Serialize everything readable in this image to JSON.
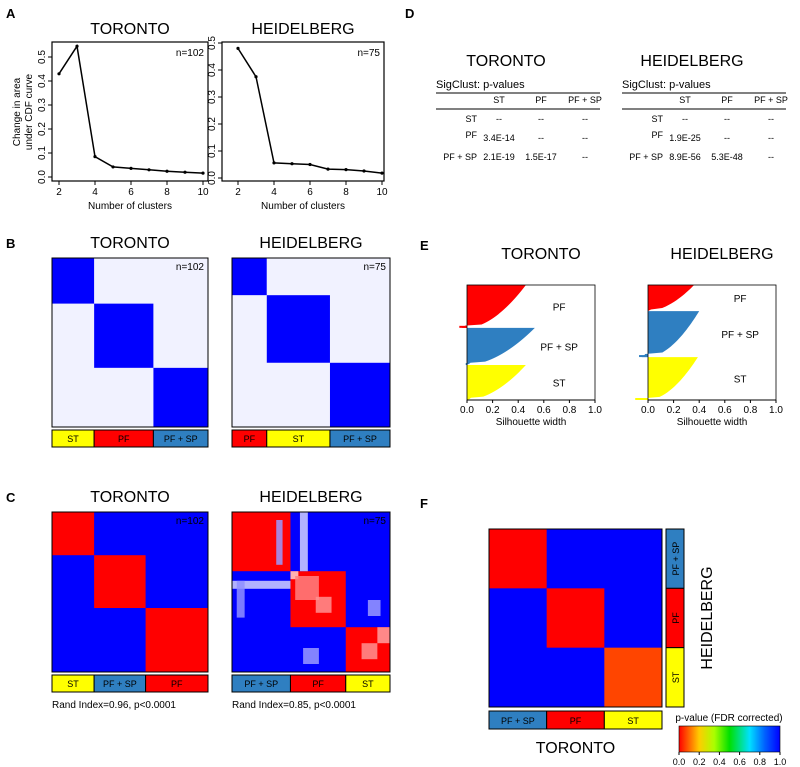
{
  "panel_labels": {
    "a": "A",
    "b": "B",
    "c": "C",
    "d": "D",
    "e": "E",
    "f": "F"
  },
  "colors": {
    "red": "#ff0000",
    "blue": "#0000ff",
    "steel": "#2f7fc1",
    "yellow": "#ffff00",
    "white": "#ffffff",
    "orange": "#ff4500"
  },
  "chart_data": [
    {
      "id": "A-toronto",
      "type": "line",
      "title": "TORONTO",
      "annotation": "n=102",
      "xlabel": "Number of clusters",
      "ylabel": [
        "Change in area",
        "under CDF curve"
      ],
      "x": [
        2,
        3,
        4,
        5,
        6,
        7,
        8,
        9,
        10
      ],
      "values": [
        0.43,
        0.545,
        0.085,
        0.042,
        0.036,
        0.03,
        0.024,
        0.02,
        0.016
      ],
      "xlim": [
        2,
        10
      ],
      "ylim": [
        0,
        0.55
      ],
      "xticks": [
        "2",
        "4",
        "6",
        "8",
        "10"
      ],
      "yticks": [
        "0.0",
        "0.1",
        "0.2",
        "0.3",
        "0.4",
        "0.5"
      ]
    },
    {
      "id": "A-heidelberg",
      "type": "line",
      "title": "HEIDELBERG",
      "annotation": "n=75",
      "xlabel": "Number of clusters",
      "x": [
        2,
        3,
        4,
        5,
        6,
        7,
        8,
        9,
        10
      ],
      "values": [
        0.48,
        0.375,
        0.056,
        0.053,
        0.05,
        0.033,
        0.031,
        0.026,
        0.018
      ],
      "xlim": [
        2,
        10
      ],
      "ylim": [
        0,
        0.5
      ],
      "xticks": [
        "2",
        "4",
        "6",
        "8",
        "10"
      ],
      "yticks": [
        "0.0",
        "0.1",
        "0.2",
        "0.3",
        "0.4",
        "0.5"
      ]
    },
    {
      "id": "D",
      "type": "table",
      "caption": "SigClust: p-values",
      "tables": [
        {
          "title": "TORONTO",
          "columns": [
            "ST",
            "PF",
            "PF + SP"
          ],
          "rows": [
            {
              "label": "ST",
              "cells": [
                "--",
                "--",
                "--"
              ]
            },
            {
              "label": "PF",
              "cells": [
                "3.4E-14",
                "--",
                "--"
              ]
            },
            {
              "label": "PF + SP",
              "cells": [
                "2.1E-19",
                "1.5E-17",
                "--"
              ]
            }
          ]
        },
        {
          "title": "HEIDELBERG",
          "columns": [
            "ST",
            "PF",
            "PF + SP"
          ],
          "rows": [
            {
              "label": "ST",
              "cells": [
                "--",
                "--",
                "--"
              ]
            },
            {
              "label": "PF",
              "cells": [
                "1.9E-25",
                "--",
                "--"
              ]
            },
            {
              "label": "PF + SP",
              "cells": [
                "8.9E-56",
                "5.3E-48",
                "--"
              ]
            }
          ]
        }
      ]
    },
    {
      "id": "B-toronto",
      "type": "heatmap",
      "title": "TORONTO",
      "annotation": "n=102",
      "clusters": [
        "ST",
        "PF",
        "PF + SP"
      ],
      "fractions": [
        0.27,
        0.38,
        0.35
      ]
    },
    {
      "id": "B-heidelberg",
      "type": "heatmap",
      "title": "HEIDELBERG",
      "annotation": "n=75",
      "clusters": [
        "PF",
        "ST",
        "PF + SP"
      ],
      "fractions": [
        0.22,
        0.4,
        0.38
      ]
    },
    {
      "id": "E-toronto",
      "type": "bar",
      "title": "TORONTO",
      "xlabel": "Silhouette width",
      "xticks": [
        "0.0",
        "0.2",
        "0.4",
        "0.6",
        "0.8",
        "1.0"
      ],
      "xlim": [
        0,
        1
      ],
      "clusters": [
        {
          "name": "PF",
          "max": 0.46,
          "min": -0.06,
          "n": 38
        },
        {
          "name": "PF + SP",
          "max": 0.53,
          "min": -0.01,
          "n": 33
        },
        {
          "name": "ST",
          "max": 0.46,
          "min": 0.0,
          "n": 31
        }
      ]
    },
    {
      "id": "E-heidelberg",
      "type": "bar",
      "title": "HEIDELBERG",
      "xlabel": "Silhouette width",
      "xticks": [
        "0.0",
        "0.2",
        "0.4",
        "0.6",
        "0.8",
        "1.0"
      ],
      "xlim": [
        0,
        1
      ],
      "clusters": [
        {
          "name": "PF",
          "max": 0.36,
          "min": 0.0,
          "n": 17
        },
        {
          "name": "PF + SP",
          "max": 0.4,
          "min": -0.07,
          "n": 30
        },
        {
          "name": "ST",
          "max": 0.39,
          "min": -0.1,
          "n": 28
        }
      ]
    },
    {
      "id": "C-toronto",
      "type": "heatmap",
      "title": "TORONTO",
      "annotation": "n=102",
      "clusters": [
        "ST",
        "PF + SP",
        "PF"
      ],
      "fractions": [
        0.27,
        0.33,
        0.4
      ],
      "caption": "Rand Index=0.96, p<0.0001"
    },
    {
      "id": "C-heidelberg",
      "type": "heatmap",
      "title": "HEIDELBERG",
      "annotation": "n=75",
      "clusters": [
        "PF + SP",
        "PF",
        "ST"
      ],
      "fractions": [
        0.37,
        0.35,
        0.28
      ],
      "caption": "Rand Index=0.85, p<0.0001"
    },
    {
      "id": "F",
      "type": "heatmap",
      "xlabel": "TORONTO",
      "ylabel": "HEIDELBERG",
      "columns": [
        "PF + SP",
        "PF",
        "ST"
      ],
      "rows": [
        "PF + SP",
        "PF",
        "ST"
      ],
      "values": [
        [
          0.0,
          1.0,
          1.0
        ],
        [
          1.0,
          0.0,
          1.0
        ],
        [
          1.0,
          1.0,
          0.05
        ]
      ],
      "colorbar": {
        "label": "p-value (FDR corrected)",
        "ticks": [
          "0.0",
          "0.2",
          "0.4",
          "0.6",
          "0.8",
          "1.0"
        ],
        "range": [
          0,
          1
        ]
      }
    }
  ]
}
